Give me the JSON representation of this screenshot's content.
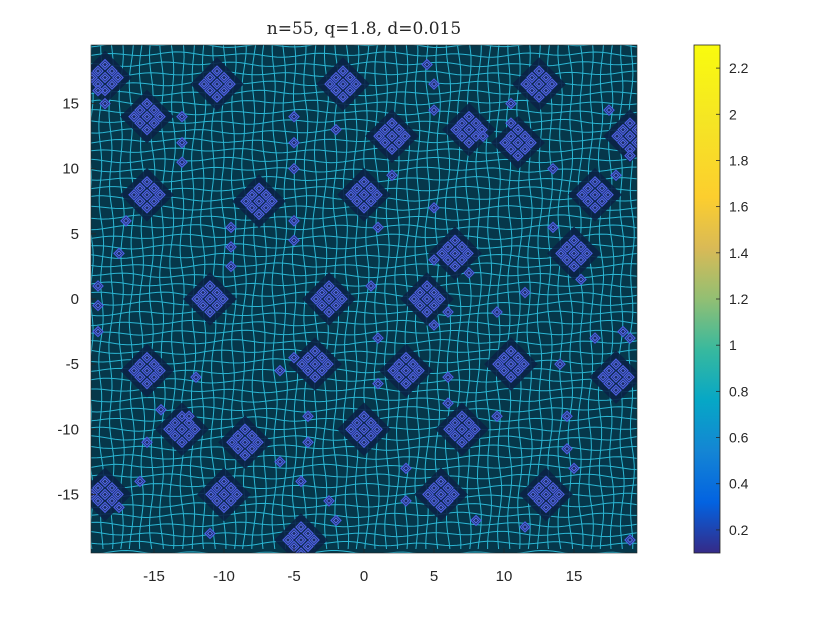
{
  "chart_data": {
    "type": "heatmap",
    "title": "n=55, q=1.8, d=0.015",
    "xlim": [
      -19.5,
      19.5
    ],
    "ylim": [
      -19.5,
      19.5
    ],
    "x_ticks": [
      -15,
      -10,
      -5,
      0,
      5,
      10,
      15
    ],
    "x_tick_labels": [
      "-15",
      "-10",
      "-5",
      "0",
      "5",
      "10",
      "15"
    ],
    "y_ticks": [
      15,
      10,
      5,
      0,
      -5,
      -10,
      -15
    ],
    "y_tick_labels": [
      "15",
      "10",
      "5",
      "0",
      "-5",
      "-10",
      "-15"
    ],
    "colorbar": {
      "colormap": "parula",
      "range": [
        0.1,
        2.3
      ],
      "ticks": [
        2.2,
        2,
        1.8,
        1.6,
        1.4,
        1.2,
        1,
        0.8,
        0.6,
        0.4,
        0.2
      ],
      "tick_labels": [
        "2.2",
        "2",
        "1.8",
        "1.6",
        "1.4",
        "1.2",
        "1",
        "0.8",
        "0.6",
        "0.4",
        "0.2"
      ]
    },
    "grid_line_value": 0.95,
    "background_value": 0.45,
    "cluster_value": 0.25,
    "clusters": [
      [
        -18.5,
        17
      ],
      [
        -15.5,
        8
      ],
      [
        -13,
        -10
      ],
      [
        -11,
        0
      ],
      [
        -10.5,
        16.5
      ],
      [
        -8.5,
        -11
      ],
      [
        -7.5,
        7.5
      ],
      [
        -2.5,
        0
      ],
      [
        -1.5,
        16.5
      ],
      [
        0,
        8
      ],
      [
        -3.5,
        -5
      ],
      [
        0,
        -10
      ],
      [
        2,
        12.5
      ],
      [
        3,
        -5.5
      ],
      [
        4.5,
        0
      ],
      [
        6.5,
        3.5
      ],
      [
        7.5,
        13
      ],
      [
        7,
        -10
      ],
      [
        10.5,
        -5
      ],
      [
        11,
        12
      ],
      [
        12.5,
        16.5
      ],
      [
        15,
        3.5
      ],
      [
        16.5,
        8
      ],
      [
        18,
        -6
      ],
      [
        13,
        -15
      ],
      [
        -15.5,
        -5.5
      ],
      [
        -18.5,
        -15
      ],
      [
        -10,
        -15
      ],
      [
        -4.5,
        -18.5
      ],
      [
        5.5,
        -15
      ],
      [
        19,
        12.5
      ],
      [
        -15.5,
        14
      ]
    ],
    "small_diamonds": [
      [
        -19,
        16
      ],
      [
        -18.5,
        15
      ],
      [
        -17,
        6
      ],
      [
        -17.5,
        3.5
      ],
      [
        -13,
        14
      ],
      [
        -13,
        12
      ],
      [
        -13,
        10.5
      ],
      [
        -12,
        -6
      ],
      [
        -12.5,
        -9
      ],
      [
        -15.5,
        -11
      ],
      [
        -16,
        -14
      ],
      [
        -14.5,
        -8.5
      ],
      [
        -9.5,
        5.5
      ],
      [
        -9.5,
        2.5
      ],
      [
        -9.5,
        4
      ],
      [
        -5,
        14
      ],
      [
        -5,
        12
      ],
      [
        -5,
        10
      ],
      [
        -5,
        6
      ],
      [
        -5,
        4.5
      ],
      [
        -5,
        -4.5
      ],
      [
        -6,
        -5.5
      ],
      [
        -4,
        -9
      ],
      [
        -4,
        -11
      ],
      [
        -6,
        -12.5
      ],
      [
        -4.5,
        -14
      ],
      [
        -2,
        13
      ],
      [
        -2.5,
        -15.5
      ],
      [
        -2,
        -17
      ],
      [
        1,
        5.5
      ],
      [
        0.5,
        1
      ],
      [
        1,
        -3
      ],
      [
        1,
        -6.5
      ],
      [
        2,
        9.5
      ],
      [
        3,
        -13
      ],
      [
        3,
        -15.5
      ],
      [
        4.5,
        18
      ],
      [
        5,
        16.5
      ],
      [
        5,
        14.5
      ],
      [
        5,
        7
      ],
      [
        5,
        3
      ],
      [
        5,
        -2
      ],
      [
        6,
        -1
      ],
      [
        6,
        -6
      ],
      [
        6,
        -8
      ],
      [
        7.5,
        2
      ],
      [
        8.5,
        12.5
      ],
      [
        9.5,
        -1
      ],
      [
        9.5,
        -9
      ],
      [
        10.5,
        15
      ],
      [
        10.5,
        13.5
      ],
      [
        11.5,
        0.5
      ],
      [
        13.5,
        10
      ],
      [
        13.5,
        5.5
      ],
      [
        14,
        -5
      ],
      [
        14.5,
        -9
      ],
      [
        14.5,
        -11.5
      ],
      [
        15,
        -13
      ],
      [
        15.5,
        1.5
      ],
      [
        16.5,
        -3
      ],
      [
        17.5,
        14.5
      ],
      [
        18,
        9.5
      ],
      [
        18.5,
        -2.5
      ],
      [
        19,
        -3
      ],
      [
        19,
        11
      ],
      [
        11.5,
        -17.5
      ],
      [
        8,
        -17
      ],
      [
        -19,
        -2.5
      ],
      [
        -19,
        1
      ],
      [
        -19,
        -0.5
      ],
      [
        -17.5,
        -16
      ],
      [
        -11,
        -18
      ],
      [
        19,
        -18.5
      ]
    ]
  }
}
